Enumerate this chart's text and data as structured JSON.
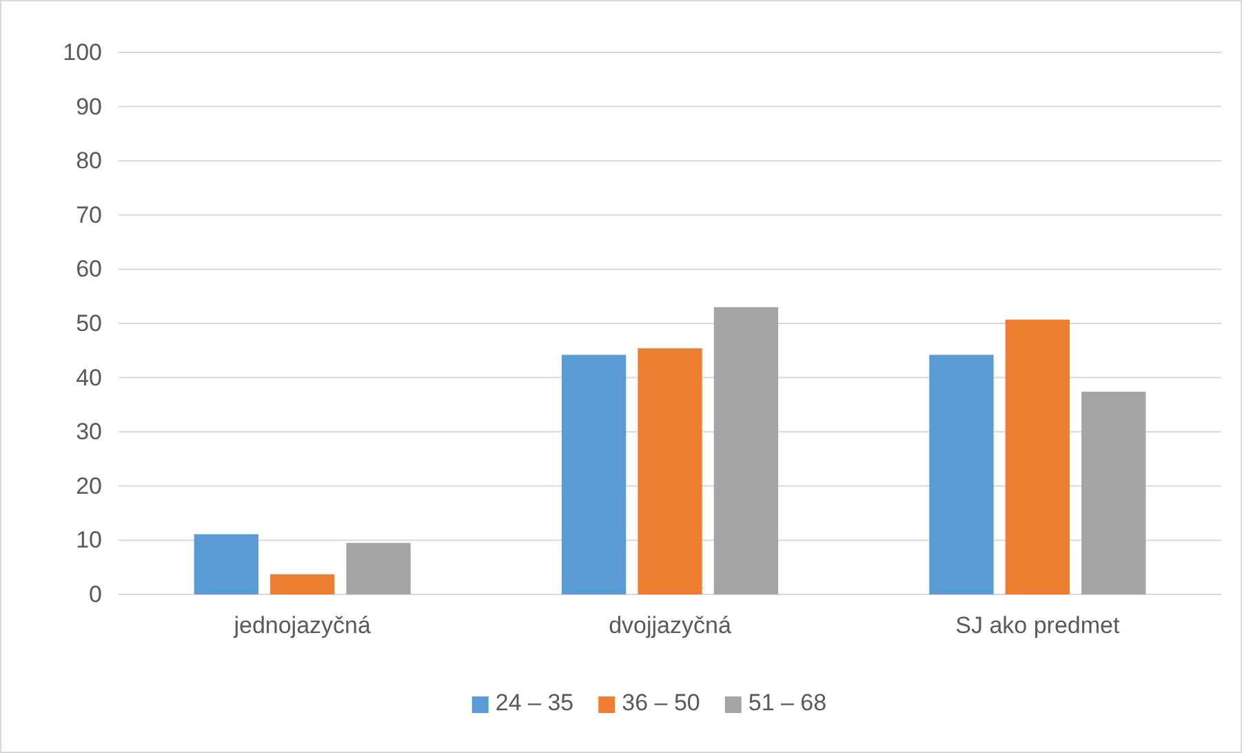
{
  "chart_data": {
    "type": "bar",
    "categories": [
      "jednojazyčná",
      "dvojjazyčná",
      "SJ ako predmet"
    ],
    "series": [
      {
        "name": "24 – 35",
        "color": "#5b9bd5",
        "values": [
          11.1,
          44.2,
          44.2
        ]
      },
      {
        "name": "36 – 50",
        "color": "#ed7d31",
        "values": [
          3.7,
          45.4,
          50.7
        ]
      },
      {
        "name": "51 – 68",
        "color": "#a5a5a5",
        "values": [
          9.5,
          53.0,
          37.4
        ]
      }
    ],
    "ylim": [
      0,
      100
    ],
    "yticks": [
      0,
      10,
      20,
      30,
      40,
      50,
      60,
      70,
      80,
      90,
      100
    ],
    "grid": "y",
    "legend": "bottom"
  }
}
